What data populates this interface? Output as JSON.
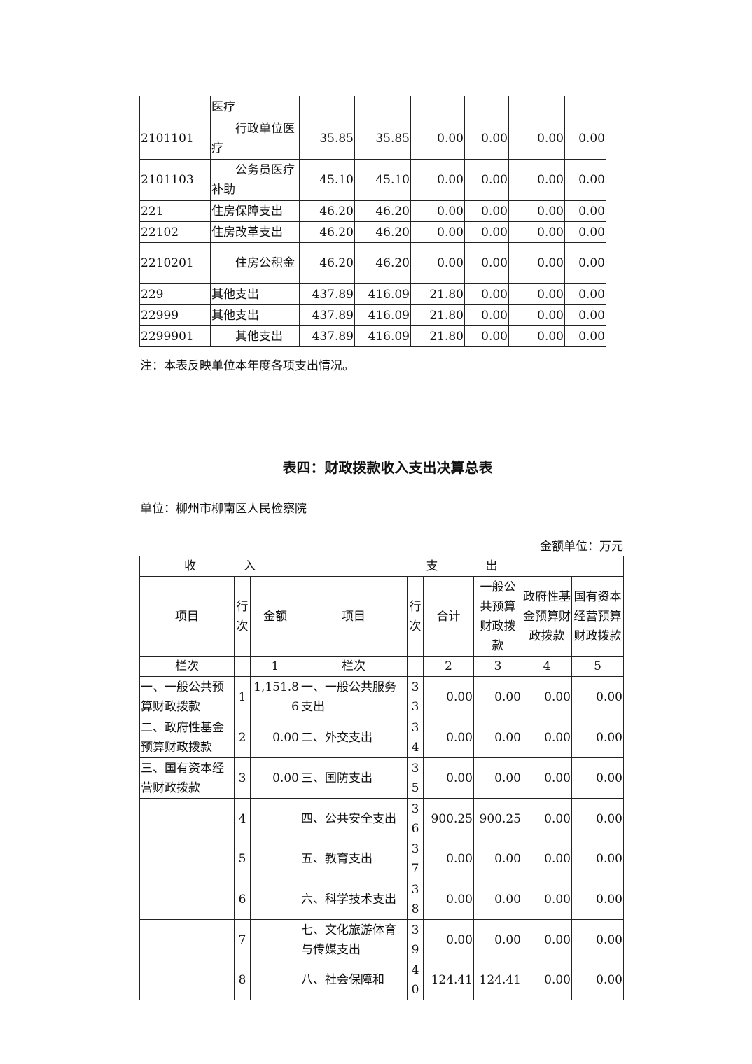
{
  "table1": {
    "rows": [
      {
        "code": "",
        "name": "医疗",
        "indent": false,
        "values": [
          "",
          "",
          "",
          "",
          "",
          ""
        ]
      },
      {
        "code": "2101101",
        "name": "行政单位医疗",
        "indent": true,
        "values": [
          "35.85",
          "35.85",
          "0.00",
          "0.00",
          "0.00",
          "0.00"
        ]
      },
      {
        "code": "2101103",
        "name": "公务员医疗补助",
        "indent": true,
        "values": [
          "45.10",
          "45.10",
          "0.00",
          "0.00",
          "0.00",
          "0.00"
        ]
      },
      {
        "code": "221",
        "name": "住房保障支出",
        "indent": false,
        "values": [
          "46.20",
          "46.20",
          "0.00",
          "0.00",
          "0.00",
          "0.00"
        ]
      },
      {
        "code": "22102",
        "name": "住房改革支出",
        "indent": false,
        "values": [
          "46.20",
          "46.20",
          "0.00",
          "0.00",
          "0.00",
          "0.00"
        ]
      },
      {
        "code": "2210201",
        "name": "住房公积金",
        "indent": true,
        "values": [
          "46.20",
          "46.20",
          "0.00",
          "0.00",
          "0.00",
          "0.00"
        ]
      },
      {
        "code": "229",
        "name": "其他支出",
        "indent": false,
        "values": [
          "437.89",
          "416.09",
          "21.80",
          "0.00",
          "0.00",
          "0.00"
        ]
      },
      {
        "code": "22999",
        "name": "其他支出",
        "indent": false,
        "values": [
          "437.89",
          "416.09",
          "21.80",
          "0.00",
          "0.00",
          "0.00"
        ]
      },
      {
        "code": "2299901",
        "name": "其他支出",
        "indent": true,
        "values": [
          "437.89",
          "416.09",
          "21.80",
          "0.00",
          "0.00",
          "0.00"
        ]
      }
    ],
    "note": "注：本表反映单位本年度各项支出情况。"
  },
  "table4": {
    "title": "表四：财政拨款收入支出决算总表",
    "unit": "单位：柳州市柳南区人民检察院",
    "amount_unit": "金额单位：万元",
    "header_income": "收　　　　入",
    "header_expense": "支　　　　出",
    "columns": [
      "项目",
      "行次",
      "金额",
      "项目",
      "行次",
      "合计",
      "一般公共预算财政拨款",
      "政府性基金预算财政拨款",
      "国有资本经营预算财政拨款"
    ],
    "column_index_row": [
      "栏次",
      "",
      "1",
      "栏次",
      "",
      "2",
      "3",
      "4",
      "5"
    ],
    "rows": [
      {
        "income_item": "一、一般公共预算财政拨款",
        "income_line": "1",
        "income_amount": "1,151.86",
        "expense_item": "一、一般公共服务支出",
        "expense_line": "33",
        "values": [
          "0.00",
          "0.00",
          "0.00",
          "0.00"
        ]
      },
      {
        "income_item": "二、政府性基金预算财政拨款",
        "income_line": "2",
        "income_amount": "0.00",
        "expense_item": "二、外交支出",
        "expense_line": "34",
        "values": [
          "0.00",
          "0.00",
          "0.00",
          "0.00"
        ]
      },
      {
        "income_item": "三、国有资本经营财政拨款",
        "income_line": "3",
        "income_amount": "0.00",
        "expense_item": "三、国防支出",
        "expense_line": "35",
        "values": [
          "0.00",
          "0.00",
          "0.00",
          "0.00"
        ]
      },
      {
        "income_item": "",
        "income_line": "4",
        "income_amount": "",
        "expense_item": "四、公共安全支出",
        "expense_line": "36",
        "values": [
          "900.25",
          "900.25",
          "0.00",
          "0.00"
        ]
      },
      {
        "income_item": "",
        "income_line": "5",
        "income_amount": "",
        "expense_item": "五、教育支出",
        "expense_line": "37",
        "values": [
          "0.00",
          "0.00",
          "0.00",
          "0.00"
        ]
      },
      {
        "income_item": "",
        "income_line": "6",
        "income_amount": "",
        "expense_item": "六、科学技术支出",
        "expense_line": "38",
        "values": [
          "0.00",
          "0.00",
          "0.00",
          "0.00"
        ]
      },
      {
        "income_item": "",
        "income_line": "7",
        "income_amount": "",
        "expense_item": "七、文化旅游体育与传媒支出",
        "expense_line": "39",
        "values": [
          "0.00",
          "0.00",
          "0.00",
          "0.00"
        ]
      },
      {
        "income_item": "",
        "income_line": "8",
        "income_amount": "",
        "expense_item": "八、社会保障和",
        "expense_line": "40",
        "values": [
          "124.41",
          "124.41",
          "0.00",
          "0.00"
        ]
      }
    ]
  }
}
